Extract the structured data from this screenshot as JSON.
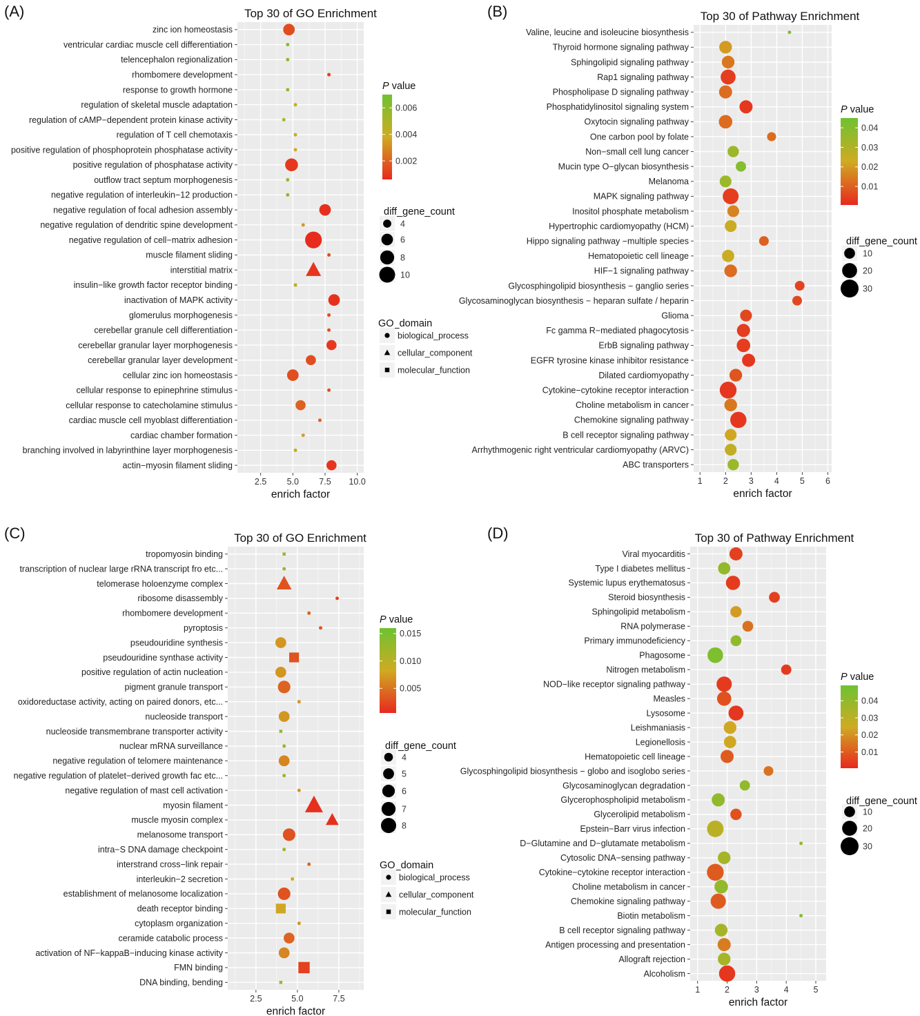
{
  "chart_data": [
    {
      "panel": "(A)",
      "type": "scatter",
      "title": "Top 30 of GO Enrichment",
      "xlabel": "enrich factor",
      "xticks": [
        2.5,
        5.0,
        7.5,
        10.0
      ],
      "xtick_labels": [
        "2.5",
        "5.0",
        "7.5",
        "10.0"
      ],
      "xlim": [
        0.7,
        10.5
      ],
      "color_legend": {
        "title_italic": "P",
        "title_rest": " value",
        "ticks": [
          0.006,
          0.004,
          0.002
        ],
        "tick_labels": [
          "0.006",
          "0.004",
          "0.002"
        ],
        "range": [
          0.0006,
          0.007
        ]
      },
      "size_legend": {
        "title": "diff_gene_count",
        "values": [
          4,
          6,
          8,
          10
        ],
        "labels": [
          "4",
          "6",
          "8",
          "10"
        ]
      },
      "shape_legend": {
        "title": "GO_domain",
        "items": [
          "biological_process",
          "cellular_component",
          "molecular_function"
        ]
      },
      "categories": [
        "zinc ion homeostasis",
        "ventricular cardiac muscle cell differentiation",
        "telencephalon regionalization",
        "rhombomere development",
        "response to growth hormone",
        "regulation of skeletal muscle adaptation",
        "regulation of cAMP−dependent protein kinase activity",
        "regulation of T cell chemotaxis",
        "positive regulation of phosphoprotein phosphatase activity",
        "positive regulation of phosphatase activity",
        "outflow tract septum morphogenesis",
        "negative regulation of interleukin−12 production",
        "negative regulation of focal adhesion assembly",
        "negative regulation of dendritic spine development",
        "negative regulation of cell−matrix adhesion",
        "muscle filament sliding",
        "interstitial matrix",
        "insulin−like growth factor receptor binding",
        "inactivation of MAPK activity",
        "glomerulus morphogenesis",
        "cerebellar granule cell differentiation",
        "cerebellar granular layer morphogenesis",
        "cerebellar granular layer development",
        "cellular zinc ion homeostasis",
        "cellular response to epinephrine stimulus",
        "cellular response to catecholamine stimulus",
        "cardiac muscle cell myoblast differentiation",
        "cardiac chamber formation",
        "branching involved in labyrinthine layer morphogenesis",
        "actin−myosin filament sliding"
      ],
      "x": [
        4.7,
        4.6,
        4.6,
        7.8,
        4.6,
        5.2,
        4.3,
        5.2,
        5.2,
        4.9,
        4.6,
        4.6,
        7.5,
        5.8,
        6.6,
        7.8,
        6.6,
        5.2,
        8.2,
        7.8,
        7.8,
        8.0,
        6.4,
        5.0,
        7.8,
        5.6,
        7.1,
        5.8,
        5.2,
        8.0
      ],
      "size": [
        6,
        3,
        3,
        3,
        3,
        3,
        3,
        3,
        3,
        7,
        3,
        3,
        6,
        3,
        11,
        3,
        7,
        3,
        6,
        3,
        3,
        5,
        5,
        6,
        3,
        5,
        3,
        3,
        3,
        5
      ],
      "pvalue": [
        0.0015,
        0.006,
        0.006,
        0.0012,
        0.006,
        0.004,
        0.005,
        0.004,
        0.004,
        0.001,
        0.006,
        0.006,
        0.0008,
        0.0033,
        0.0007,
        0.0015,
        0.0009,
        0.0045,
        0.0008,
        0.0015,
        0.0015,
        0.001,
        0.0015,
        0.0015,
        0.0015,
        0.002,
        0.002,
        0.0035,
        0.0045,
        0.0009
      ],
      "shape": [
        "circle",
        "circle",
        "circle",
        "circle",
        "circle",
        "circle",
        "circle",
        "circle",
        "circle",
        "circle",
        "circle",
        "circle",
        "circle",
        "circle",
        "circle",
        "circle",
        "triangle",
        "square",
        "circle",
        "circle",
        "circle",
        "circle",
        "circle",
        "circle",
        "circle",
        "circle",
        "circle",
        "circle",
        "circle",
        "circle"
      ]
    },
    {
      "panel": "(B)",
      "type": "scatter",
      "title": "Top 30 of Pathway Enrichment",
      "xlabel": "enrich factor",
      "xticks": [
        1,
        2,
        3,
        4,
        5,
        6
      ],
      "xtick_labels": [
        "1",
        "2",
        "3",
        "4",
        "5",
        "6"
      ],
      "xlim": [
        0.75,
        6.15
      ],
      "color_legend": {
        "title_italic": "P",
        "title_rest": " value",
        "ticks": [
          0.04,
          0.03,
          0.02,
          0.01
        ],
        "tick_labels": [
          "0.04",
          "0.03",
          "0.02",
          "0.01"
        ],
        "range": [
          0.0005,
          0.045
        ]
      },
      "size_legend": {
        "title": "diff_gene_count",
        "values": [
          10,
          20,
          30
        ],
        "labels": [
          "10",
          "20",
          "30"
        ]
      },
      "categories": [
        "Valine, leucine and isoleucine biosynthesis",
        "Thyroid hormone signaling pathway",
        "Sphingolipid signaling pathway",
        "Rap1 signaling pathway",
        "Phospholipase D signaling pathway",
        "Phosphatidylinositol signaling system",
        "Oxytocin signaling pathway",
        "One carbon pool by folate",
        "Non−small cell lung cancer",
        "Mucin type O−glycan biosynthesis",
        "Melanoma",
        "MAPK signaling pathway",
        "Inositol phosphate metabolism",
        "Hypertrophic cardiomyopathy (HCM)",
        "Hippo signaling pathway −multiple species",
        "Hematopoietic cell lineage",
        "HIF−1 signaling pathway",
        "Glycosphingolipid biosynthesis − ganglio series",
        "Glycosaminoglycan biosynthesis − heparan sulfate / heparin",
        "Glioma",
        "Fc gamma R−mediated phagocytosis",
        "ErbB signaling pathway",
        "EGFR tyrosine kinase inhibitor resistance",
        "Dilated cardiomyopathy",
        "Cytokine−cytokine receptor interaction",
        "Choline metabolism in cancer",
        "Chemokine signaling pathway",
        "B cell receptor signaling pathway",
        "Arrhythmogenic right ventricular cardiomyopathy (ARVC)",
        "ABC transporters"
      ],
      "x": [
        4.5,
        2.0,
        2.1,
        2.1,
        2.0,
        2.8,
        2.0,
        3.8,
        2.3,
        2.6,
        2.0,
        2.2,
        2.3,
        2.2,
        3.5,
        2.1,
        2.2,
        4.9,
        4.8,
        2.8,
        2.7,
        2.7,
        2.9,
        2.4,
        2.1,
        2.2,
        2.5,
        2.2,
        2.2,
        2.3
      ],
      "size": [
        3,
        14,
        14,
        20,
        15,
        15,
        16,
        7,
        11,
        9,
        12,
        23,
        12,
        12,
        8,
        13,
        14,
        8,
        8,
        12,
        15,
        16,
        15,
        14,
        26,
        14,
        24,
        12,
        12,
        11
      ],
      "pvalue": [
        0.04,
        0.02,
        0.014,
        0.004,
        0.012,
        0.003,
        0.012,
        0.012,
        0.035,
        0.04,
        0.035,
        0.004,
        0.016,
        0.024,
        0.01,
        0.024,
        0.012,
        0.005,
        0.006,
        0.006,
        0.004,
        0.004,
        0.003,
        0.008,
        0.003,
        0.014,
        0.003,
        0.022,
        0.026,
        0.035
      ]
    },
    {
      "panel": "(C)",
      "type": "scatter",
      "title": "Top 30 of GO Enrichment",
      "xlabel": "enrich factor",
      "xticks": [
        2.5,
        5.0,
        7.5
      ],
      "xtick_labels": [
        "2.5",
        "5.0",
        "7.5"
      ],
      "xlim": [
        0.8,
        9.0
      ],
      "color_legend": {
        "title_italic": "P",
        "title_rest": " value",
        "ticks": [
          0.015,
          0.01,
          0.005
        ],
        "tick_labels": [
          "0.015",
          "0.010",
          "0.005"
        ],
        "range": [
          0.0005,
          0.016
        ]
      },
      "size_legend": {
        "title": "diff_gene_count",
        "values": [
          4,
          5,
          6,
          7,
          8
        ],
        "labels": [
          "4",
          "5",
          "6",
          "7",
          "8"
        ]
      },
      "shape_legend": {
        "title": "GO_domain",
        "items": [
          "biological_process",
          "cellular_component",
          "molecular_function"
        ]
      },
      "categories": [
        "tropomyosin binding",
        "transcription of nuclear large rRNA transcript fro etc...",
        "telomerase holoenzyme complex",
        "ribosome disassembly",
        "rhombomere development",
        "pyroptosis",
        "pseudouridine synthesis",
        "pseudouridine synthase activity",
        "positive regulation of actin nucleation",
        "pigment granule transport",
        "oxidoreductase activity, acting on paired donors,  etc...",
        "nucleoside transport",
        "nucleoside transmembrane transporter activity",
        "nuclear mRNA surveillance",
        "negative regulation of telomere maintenance",
        "negative regulation of platelet−derived growth fac etc...",
        "negative regulation of mast cell activation",
        "myosin filament",
        "muscle myosin complex",
        "melanosome transport",
        "intra−S DNA damage checkpoint",
        "interstrand cross−link repair",
        "interleukin−2 secretion",
        "establishment of melanosome localization",
        "death receptor binding",
        "cytoplasm organization",
        "ceramide catabolic process",
        "activation of NF−kappaB−inducing kinase activity",
        "FMN binding",
        "DNA binding, bending"
      ],
      "x": [
        4.2,
        4.2,
        4.2,
        7.4,
        5.7,
        6.4,
        4.0,
        4.8,
        4.0,
        4.2,
        5.1,
        4.2,
        4.0,
        4.2,
        4.2,
        4.2,
        5.1,
        6.0,
        7.1,
        4.5,
        4.2,
        5.7,
        4.7,
        4.2,
        4.0,
        5.1,
        4.5,
        4.2,
        5.4,
        4.0
      ],
      "size": [
        3,
        3,
        6,
        3,
        3,
        3,
        5,
        5,
        5,
        6,
        3,
        5,
        3,
        3,
        5,
        3,
        3,
        8,
        5,
        6,
        3,
        3,
        3,
        6,
        5,
        3,
        5,
        5,
        6,
        3
      ],
      "pvalue": [
        0.013,
        0.013,
        0.003,
        0.002,
        0.004,
        0.003,
        0.007,
        0.003,
        0.007,
        0.004,
        0.007,
        0.007,
        0.013,
        0.013,
        0.006,
        0.013,
        0.007,
        0.001,
        0.001,
        0.003,
        0.013,
        0.004,
        0.008,
        0.003,
        0.008,
        0.007,
        0.004,
        0.006,
        0.002,
        0.012
      ],
      "shape": [
        "square",
        "circle",
        "triangle",
        "circle",
        "circle",
        "circle",
        "circle",
        "square",
        "circle",
        "circle",
        "square",
        "circle",
        "square",
        "circle",
        "circle",
        "circle",
        "circle",
        "triangle",
        "triangle",
        "circle",
        "circle",
        "circle",
        "circle",
        "circle",
        "square",
        "circle",
        "circle",
        "circle",
        "square",
        "square"
      ]
    },
    {
      "panel": "(D)",
      "type": "scatter",
      "title": "Top 30 of Pathway Enrichment",
      "xlabel": "enrich factor",
      "xticks": [
        1,
        2,
        3,
        4,
        5
      ],
      "xtick_labels": [
        "1",
        "2",
        "3",
        "4",
        "5"
      ],
      "xlim": [
        0.75,
        5.35
      ],
      "color_legend": {
        "title_italic": "P",
        "title_rest": " value",
        "ticks": [
          0.04,
          0.03,
          0.02,
          0.01
        ],
        "tick_labels": [
          "0.04",
          "0.03",
          "0.02",
          "0.01"
        ],
        "range": [
          0.0005,
          0.049
        ]
      },
      "size_legend": {
        "title": "diff_gene_count",
        "values": [
          10,
          20,
          30
        ],
        "labels": [
          "10",
          "20",
          "30"
        ]
      },
      "categories": [
        "Viral myocarditis",
        "Type I diabetes mellitus",
        "Systemic lupus erythematosus",
        "Steroid biosynthesis",
        "Sphingolipid metabolism",
        "RNA polymerase",
        "Primary immunodeficiency",
        "Phagosome",
        "Nitrogen metabolism",
        "NOD−like receptor signaling pathway",
        "Measles",
        "Lysosome",
        "Leishmaniasis",
        "Legionellosis",
        "Hematopoietic cell lineage",
        "Glycosphingolipid biosynthesis − globo and isoglobo series",
        "Glycosaminoglycan degradation",
        "Glycerophospholipid metabolism",
        "Glycerolipid metabolism",
        "Epstein−Barr virus infection",
        "D−Glutamine and D−glutamate metabolism",
        "Cytosolic DNA−sensing pathway",
        "Cytokine−cytokine receptor interaction",
        "Choline metabolism in cancer",
        "Chemokine signaling pathway",
        "Biotin metabolism",
        "B cell receptor signaling pathway",
        "Antigen processing and presentation",
        "Allograft rejection",
        "Alcoholism"
      ],
      "x": [
        2.3,
        1.9,
        2.2,
        3.6,
        2.3,
        2.7,
        2.3,
        1.6,
        4.0,
        1.9,
        1.9,
        2.3,
        2.1,
        2.1,
        2.0,
        3.4,
        2.6,
        1.7,
        2.3,
        1.6,
        4.5,
        1.9,
        1.6,
        1.8,
        1.7,
        4.5,
        1.8,
        1.9,
        1.9,
        2.0
      ],
      "size": [
        15,
        13,
        18,
        10,
        11,
        10,
        10,
        22,
        9,
        21,
        18,
        20,
        14,
        13,
        15,
        8,
        9,
        15,
        11,
        25,
        3,
        14,
        26,
        16,
        21,
        3,
        14,
        15,
        14,
        24
      ],
      "pvalue": [
        0.005,
        0.04,
        0.004,
        0.005,
        0.022,
        0.014,
        0.04,
        0.045,
        0.004,
        0.004,
        0.008,
        0.003,
        0.024,
        0.024,
        0.01,
        0.014,
        0.04,
        0.04,
        0.008,
        0.03,
        0.04,
        0.035,
        0.01,
        0.04,
        0.01,
        0.045,
        0.035,
        0.016,
        0.035,
        0.003
      ]
    }
  ]
}
